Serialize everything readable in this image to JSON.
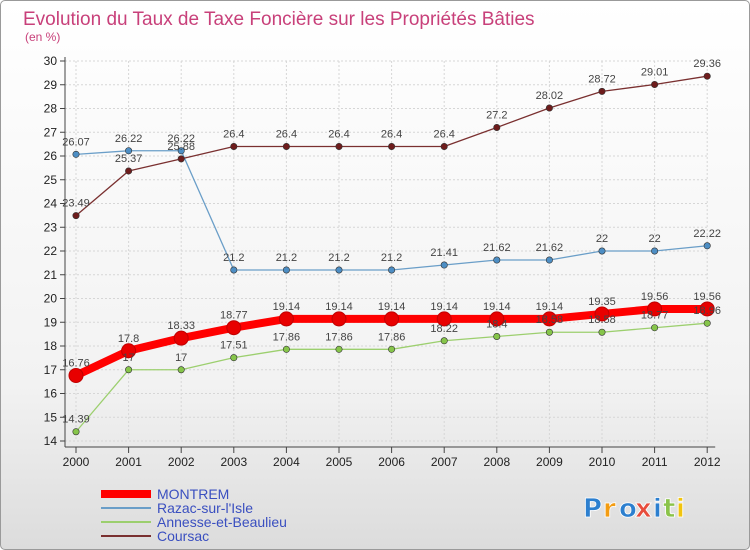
{
  "chart_data": {
    "type": "line",
    "title": "Evolution du Taux de Taxe Foncière sur les Propriétés Bâties",
    "subtitle": "(en %)",
    "xlabel": "",
    "ylabel": "",
    "ylim": [
      14,
      30
    ],
    "yticks": [
      "14",
      "15",
      "16",
      "17",
      "18",
      "19",
      "20",
      "21",
      "22",
      "23",
      "24",
      "25",
      "26",
      "27",
      "28",
      "29",
      "30"
    ],
    "categories": [
      "2000",
      "2001",
      "2002",
      "2003",
      "2004",
      "2005",
      "2006",
      "2007",
      "2008",
      "2009",
      "2010",
      "2011",
      "2012"
    ],
    "series": [
      {
        "name": "Razac-sur-l'Isle",
        "color": "#6a9ec8",
        "marker": "#4d8ec4",
        "values": [
          26.07,
          26.22,
          26.22,
          21.2,
          21.2,
          21.2,
          21.2,
          21.41,
          21.62,
          21.62,
          22,
          22,
          22.22
        ],
        "labels": [
          "26.07",
          "26.22",
          "26.22",
          "21.2",
          "21.2",
          "21.2",
          "21.2",
          "21.41",
          "21.62",
          "21.62",
          "22",
          "22",
          "22.22"
        ]
      },
      {
        "name": "Annesse-et-Beaulieu",
        "color": "#9ccf6e",
        "marker": "#86c54a",
        "values": [
          14.39,
          17,
          17,
          17.51,
          17.86,
          17.86,
          17.86,
          18.22,
          18.4,
          18.58,
          18.58,
          18.77,
          18.96
        ],
        "labels": [
          "14.39",
          "17",
          "17",
          "17.51",
          "17.86",
          "17.86",
          "17.86",
          "18.22",
          "18.4",
          "18.58",
          "18.58",
          "18.77",
          "18.96"
        ]
      },
      {
        "name": "Coursac",
        "color": "#7a3030",
        "marker": "#6e1c1c",
        "values": [
          23.49,
          25.37,
          25.88,
          26.4,
          26.4,
          26.4,
          26.4,
          26.4,
          27.2,
          28.02,
          28.72,
          29.01,
          29.36
        ],
        "labels": [
          "23.49",
          "25.37",
          "25.88",
          "26.4",
          "26.4",
          "26.4",
          "26.4",
          "26.4",
          "27.2",
          "28.02",
          "28.72",
          "29.01",
          "29.36"
        ]
      },
      {
        "name": "MONTREM",
        "color": "#ff0000",
        "marker": "#e80000",
        "highlight": true,
        "values": [
          16.76,
          17.8,
          18.33,
          18.77,
          19.14,
          19.14,
          19.14,
          19.14,
          19.14,
          19.14,
          19.35,
          19.56,
          19.56
        ],
        "labels": [
          "16.76",
          "17.8",
          "18.33",
          "18.77",
          "19.14",
          "19.14",
          "19.14",
          "19.14",
          "19.14",
          "19.14",
          "19.35",
          "19.56",
          "19.56"
        ]
      }
    ],
    "legend": [
      "MONTREM",
      "Razac-sur-l'Isle",
      "Annesse-et-Beaulieu",
      "Coursac"
    ],
    "legend_position": "bottom-left"
  },
  "logo": {
    "letters": [
      "P",
      "r",
      "o",
      "x",
      "i",
      "t",
      "i"
    ],
    "colors": [
      "#2c7fcf",
      "#f39c12",
      "#2c7fcf",
      "#e74c3c",
      "#2c7fcf",
      "#8bc34a",
      "#f1c40f"
    ]
  }
}
